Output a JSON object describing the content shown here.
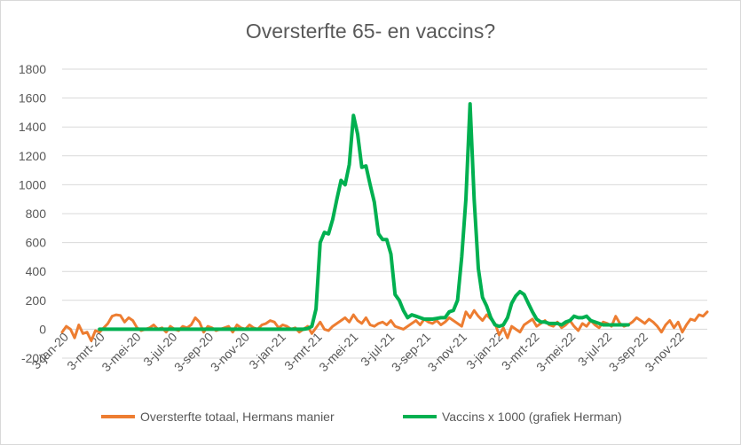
{
  "chart_data": {
    "type": "line",
    "title": "Oversterfte 65- en vaccins?",
    "xlabel": "",
    "ylabel": "",
    "ylim": [
      -200,
      1800
    ],
    "ytick_labels": [
      "-200",
      "0",
      "200",
      "400",
      "600",
      "800",
      "1000",
      "1200",
      "1400",
      "1600",
      "1800"
    ],
    "xtick_labels": [
      "3-jan-20",
      "3-mrt-20",
      "3-mei-20",
      "3-jul-20",
      "3-sep-20",
      "3-nov-20",
      "3-jan-21",
      "3-mrt-21",
      "3-mei-21",
      "3-jul-21",
      "3-sep-21",
      "3-nov-21",
      "3-jan-22",
      "3-mrt-22",
      "3-mei-22",
      "3-jul-22",
      "3-sep-22",
      "3-nov-22"
    ],
    "x_unit": "weeks since 3-jan-20",
    "legend_position": "bottom",
    "series": [
      {
        "name": "Oversterfte totaal, Hermans manier",
        "color": "#ed7d31",
        "x": [
          0,
          1,
          2,
          3,
          4,
          5,
          6,
          7,
          8,
          9,
          10,
          11,
          12,
          13,
          14,
          15,
          16,
          17,
          18,
          19,
          20,
          21,
          22,
          23,
          24,
          25,
          26,
          27,
          28,
          29,
          30,
          31,
          32,
          33,
          34,
          35,
          36,
          37,
          38,
          39,
          40,
          41,
          42,
          43,
          44,
          45,
          46,
          47,
          48,
          49,
          50,
          51,
          52,
          53,
          54,
          55,
          56,
          57,
          58,
          59,
          60,
          61,
          62,
          63,
          64,
          65,
          66,
          67,
          68,
          69,
          70,
          71,
          72,
          73,
          74,
          75,
          76,
          77,
          78,
          79,
          80,
          81,
          82,
          83,
          84,
          85,
          86,
          87,
          88,
          89,
          90,
          91,
          92,
          93,
          94,
          95,
          96,
          97,
          98,
          99,
          100,
          101,
          102,
          103,
          104,
          105,
          106,
          107,
          108,
          109,
          110,
          111,
          112,
          113,
          114,
          115,
          116,
          117,
          118,
          119,
          120,
          121,
          122,
          123,
          124,
          125,
          126,
          127,
          128,
          129,
          130,
          131,
          132,
          133,
          134,
          135,
          136,
          137,
          138,
          139,
          140,
          141,
          142,
          143,
          144,
          145,
          146,
          147,
          148,
          149,
          150,
          151,
          152,
          153,
          154,
          155
        ],
        "values": [
          -20,
          20,
          0,
          -60,
          30,
          -30,
          -20,
          -80,
          -10,
          -20,
          10,
          40,
          90,
          100,
          95,
          50,
          80,
          60,
          10,
          -10,
          0,
          10,
          30,
          0,
          10,
          -20,
          20,
          0,
          -10,
          20,
          10,
          30,
          80,
          50,
          -20,
          20,
          10,
          -10,
          0,
          10,
          20,
          -20,
          30,
          10,
          0,
          30,
          10,
          0,
          30,
          40,
          60,
          50,
          10,
          30,
          20,
          0,
          10,
          -20,
          0,
          20,
          -30,
          10,
          50,
          0,
          -10,
          20,
          40,
          60,
          80,
          50,
          100,
          60,
          40,
          80,
          30,
          20,
          40,
          50,
          30,
          60,
          20,
          10,
          0,
          20,
          40,
          60,
          30,
          70,
          50,
          40,
          60,
          30,
          50,
          80,
          60,
          40,
          20,
          120,
          80,
          130,
          90,
          60,
          100,
          70,
          40,
          -40,
          10,
          -60,
          20,
          0,
          -20,
          30,
          50,
          70,
          20,
          40,
          60,
          30,
          20,
          50,
          10,
          30,
          60,
          20,
          -10,
          40,
          20,
          60,
          30,
          10,
          50,
          40,
          20,
          90,
          40,
          20,
          30,
          50,
          80,
          60,
          40,
          70,
          50,
          20,
          -20,
          30,
          60,
          10,
          50,
          -20,
          30,
          70,
          60,
          100,
          90,
          120
        ]
      },
      {
        "name": "Vaccins x 1000 (grafiek Herman)",
        "color": "#00b050",
        "x": [
          9,
          57,
          58,
          59,
          60,
          61,
          62,
          63,
          64,
          65,
          66,
          67,
          68,
          69,
          70,
          71,
          72,
          73,
          74,
          75,
          76,
          77,
          78,
          79,
          80,
          81,
          82,
          83,
          84,
          85,
          86,
          87,
          88,
          89,
          90,
          91,
          92,
          93,
          94,
          95,
          96,
          97,
          98,
          99,
          100,
          101,
          102,
          103,
          104,
          105,
          106,
          107,
          108,
          109,
          110,
          111,
          112,
          113,
          114,
          115,
          116,
          117,
          118,
          119,
          120,
          121,
          122,
          123,
          124,
          125,
          126,
          127,
          128,
          129,
          130,
          131,
          132,
          133,
          134,
          135,
          136
        ],
        "values": [
          0,
          0,
          0,
          5,
          20,
          140,
          600,
          670,
          660,
          760,
          900,
          1030,
          1000,
          1140,
          1480,
          1350,
          1120,
          1130,
          1000,
          880,
          660,
          620,
          620,
          520,
          240,
          200,
          130,
          80,
          100,
          90,
          80,
          70,
          70,
          70,
          75,
          80,
          80,
          120,
          130,
          200,
          500,
          900,
          1560,
          900,
          420,
          220,
          160,
          80,
          30,
          20,
          30,
          80,
          180,
          230,
          260,
          240,
          180,
          120,
          70,
          50,
          50,
          40,
          40,
          40,
          30,
          50,
          60,
          90,
          80,
          80,
          90,
          60,
          50,
          40,
          30,
          30,
          30,
          30,
          30,
          30,
          30
        ]
      }
    ]
  }
}
